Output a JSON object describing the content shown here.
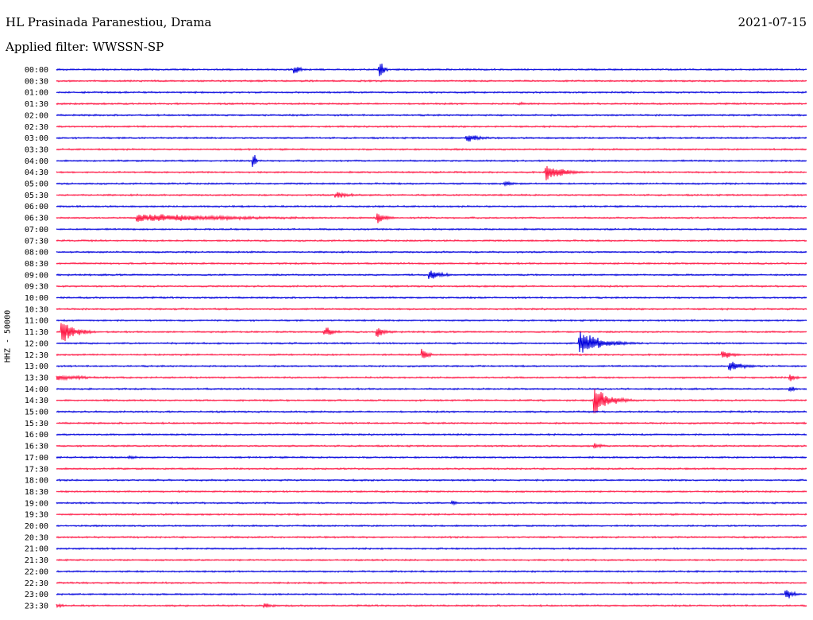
{
  "header": {
    "station": "HL Prasinada Paranestiou, Drama",
    "date": "2021-07-15",
    "filter": "Applied filter: WWSSN-SP"
  },
  "chart_data": {
    "type": "line",
    "title": "HL Prasinada Paranestiou, Drama",
    "ylabel": "HHZ - 50000",
    "colors": [
      "#0000dd",
      "#ff1744"
    ],
    "line_labels": [
      "00:00",
      "00:30",
      "01:00",
      "01:30",
      "02:00",
      "02:30",
      "03:00",
      "03:30",
      "04:00",
      "04:30",
      "05:00",
      "05:30",
      "06:00",
      "06:30",
      "07:00",
      "07:30",
      "08:00",
      "08:30",
      "09:00",
      "09:30",
      "10:00",
      "10:30",
      "11:00",
      "11:30",
      "12:00",
      "12:30",
      "13:00",
      "13:30",
      "14:00",
      "14:30",
      "15:00",
      "15:30",
      "16:00",
      "16:30",
      "17:00",
      "17:30",
      "18:00",
      "18:30",
      "19:00",
      "19:30",
      "20:00",
      "20:30",
      "21:00",
      "21:30",
      "22:00",
      "22:30",
      "23:00",
      "23:30"
    ],
    "events": [
      {
        "line": "00:00",
        "pos": 0.32,
        "amp": 1.4,
        "dur": 0.02
      },
      {
        "line": "00:00",
        "pos": 0.433,
        "amp": 3.0,
        "dur": 0.015
      },
      {
        "line": "01:30",
        "pos": 0.62,
        "amp": 0.6,
        "dur": 0.03
      },
      {
        "line": "03:00",
        "pos": 0.55,
        "amp": 1.4,
        "dur": 0.05
      },
      {
        "line": "04:00",
        "pos": 0.265,
        "amp": 3.0,
        "dur": 0.005
      },
      {
        "line": "04:30",
        "pos": 0.655,
        "amp": 3.2,
        "dur": 0.06
      },
      {
        "line": "05:00",
        "pos": 0.6,
        "amp": 1.0,
        "dur": 0.03
      },
      {
        "line": "05:30",
        "pos": 0.375,
        "amp": 1.2,
        "dur": 0.06
      },
      {
        "line": "06:30",
        "pos": 0.11,
        "amp": 1.6,
        "dur": 0.4
      },
      {
        "line": "06:30",
        "pos": 0.43,
        "amp": 2.0,
        "dur": 0.03
      },
      {
        "line": "09:00",
        "pos": 0.5,
        "amp": 1.6,
        "dur": 0.05
      },
      {
        "line": "11:30",
        "pos": 0.01,
        "amp": 4.0,
        "dur": 0.05
      },
      {
        "line": "11:30",
        "pos": 0.36,
        "amp": 2.0,
        "dur": 0.03
      },
      {
        "line": "11:30",
        "pos": 0.43,
        "amp": 2.2,
        "dur": 0.03
      },
      {
        "line": "12:00",
        "pos": 0.7,
        "amp": 4.5,
        "dur": 0.08
      },
      {
        "line": "12:30",
        "pos": 0.49,
        "amp": 2.0,
        "dur": 0.02
      },
      {
        "line": "12:30",
        "pos": 0.89,
        "amp": 1.5,
        "dur": 0.04
      },
      {
        "line": "13:00",
        "pos": 0.9,
        "amp": 2.0,
        "dur": 0.05
      },
      {
        "line": "13:30",
        "pos": 0.0,
        "amp": 1.0,
        "dur": 0.15
      },
      {
        "line": "13:30",
        "pos": 0.98,
        "amp": 1.4,
        "dur": 0.02
      },
      {
        "line": "14:00",
        "pos": 0.98,
        "amp": 1.0,
        "dur": 0.02
      },
      {
        "line": "14:30",
        "pos": 0.72,
        "amp": 4.5,
        "dur": 0.06
      },
      {
        "line": "16:30",
        "pos": 0.72,
        "amp": 1.0,
        "dur": 0.03
      },
      {
        "line": "17:00",
        "pos": 0.1,
        "amp": 0.6,
        "dur": 0.03
      },
      {
        "line": "19:00",
        "pos": 0.53,
        "amp": 0.8,
        "dur": 0.02
      },
      {
        "line": "23:00",
        "pos": 0.975,
        "amp": 2.4,
        "dur": 0.025
      },
      {
        "line": "23:30",
        "pos": 0.0,
        "amp": 1.0,
        "dur": 0.03
      },
      {
        "line": "23:30",
        "pos": 0.28,
        "amp": 1.0,
        "dur": 0.03
      }
    ]
  }
}
